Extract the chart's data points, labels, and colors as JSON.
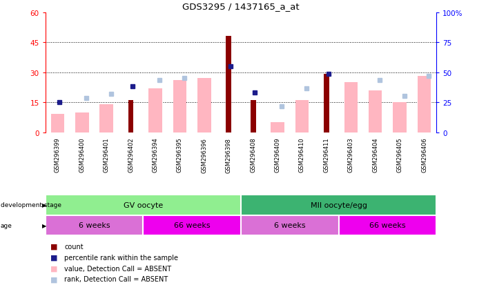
{
  "title": "GDS3295 / 1437165_a_at",
  "samples": [
    "GSM296399",
    "GSM296400",
    "GSM296401",
    "GSM296402",
    "GSM296394",
    "GSM296395",
    "GSM296396",
    "GSM296398",
    "GSM296408",
    "GSM296409",
    "GSM296410",
    "GSM296411",
    "GSM296403",
    "GSM296404",
    "GSM296405",
    "GSM296406"
  ],
  "count_values": [
    null,
    null,
    null,
    16,
    null,
    null,
    null,
    48,
    16,
    null,
    null,
    29,
    null,
    null,
    null,
    null
  ],
  "percentile_rank": [
    15,
    null,
    null,
    23,
    null,
    null,
    null,
    33,
    20,
    null,
    null,
    29,
    null,
    null,
    null,
    null
  ],
  "absent_value": [
    9,
    10,
    14,
    null,
    22,
    26,
    27,
    null,
    null,
    5,
    16,
    null,
    25,
    21,
    15,
    28
  ],
  "absent_rank": [
    null,
    17,
    19,
    null,
    26,
    27,
    null,
    null,
    null,
    13,
    22,
    null,
    null,
    26,
    18,
    28
  ],
  "ylim_left": [
    0,
    60
  ],
  "ylim_right": [
    0,
    100
  ],
  "yticks_left": [
    0,
    15,
    30,
    45,
    60
  ],
  "yticks_right": [
    0,
    25,
    50,
    75,
    100
  ],
  "count_color": "#8B0000",
  "percentile_color": "#1C1C8B",
  "absent_value_color": "#FFB6C1",
  "absent_rank_color": "#B0C4DE",
  "dev_stage_groups": [
    {
      "label": "GV oocyte",
      "start": 0,
      "end": 7,
      "color": "#90EE90"
    },
    {
      "label": "MII oocyte/egg",
      "start": 8,
      "end": 15,
      "color": "#3CB371"
    }
  ],
  "age_groups": [
    {
      "label": "6 weeks",
      "start": 0,
      "end": 3,
      "color": "#DA70D6"
    },
    {
      "label": "66 weeks",
      "start": 4,
      "end": 7,
      "color": "#EE00EE"
    },
    {
      "label": "6 weeks",
      "start": 8,
      "end": 11,
      "color": "#DA70D6"
    },
    {
      "label": "66 weeks",
      "start": 12,
      "end": 15,
      "color": "#EE00EE"
    }
  ],
  "legend_items": [
    {
      "color": "#8B0000",
      "label": "count"
    },
    {
      "color": "#1C1C8B",
      "label": "percentile rank within the sample"
    },
    {
      "color": "#FFB6C1",
      "label": "value, Detection Call = ABSENT"
    },
    {
      "color": "#B0C4DE",
      "label": "rank, Detection Call = ABSENT"
    }
  ]
}
